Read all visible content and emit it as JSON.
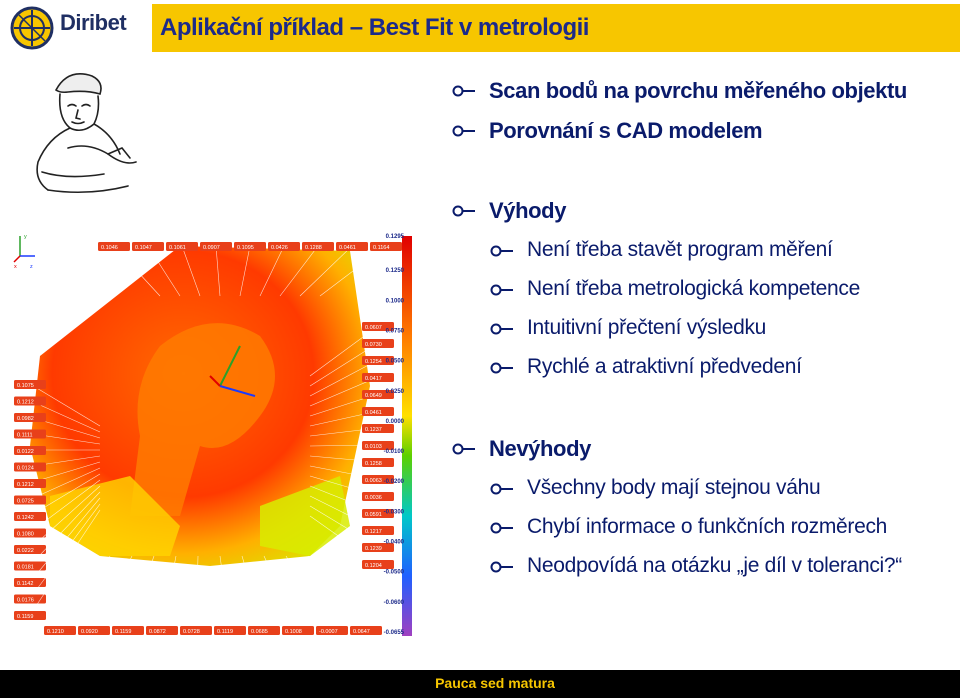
{
  "header": {
    "logo_text": "Diribet",
    "title": "Aplikační příklad – Best Fit v metrologii"
  },
  "bullets": {
    "scan": "Scan bodů na povrchu měřeného objektu",
    "compare": "Porovnání s CAD modelem",
    "advantages": "Výhody",
    "adv_items": [
      "Není třeba stavět program měření",
      "Není třeba metrologická kompetence",
      "Intuitivní přečtení výsledku",
      "Rychlé a atraktivní předvedení"
    ],
    "disadvantages": "Nevýhody",
    "dis_items": [
      "Všechny body mají stejnou váhu",
      "Chybí informace o funkčních rozměrech",
      "Neodpovídá na otázku „je díl v toleranci?“"
    ]
  },
  "figure": {
    "top_labels": [
      "0.1046",
      "0.1047",
      "0.1061",
      "0.0907",
      "0.1095",
      "0.0426",
      "0.1288",
      "0.0461",
      "0.1164"
    ],
    "left_labels": [
      "0.1075",
      "0.1212",
      "0.0982",
      "0.1111",
      "0.0122",
      "0.0124",
      "0.1212",
      "0.0725",
      "0.1242",
      "0.1080",
      "0.0222",
      "0.0181",
      "0.1142",
      "0.0176",
      "0.1159"
    ],
    "bottom_labels": [
      "0.1210",
      "0.0920",
      "0.1159",
      "0.0872",
      "0.0728",
      "0.1119",
      "0.0685",
      "0.1008",
      "-0.0007",
      "0.0647"
    ],
    "right_labels": [
      "0.0607",
      "0.0730",
      "0.1254",
      "0.0417",
      "0.0649",
      "0.0461",
      "0.1237",
      "0.0103",
      "0.1258",
      "0.0063",
      "0.0036",
      "0.0591",
      "0.1217",
      "0.1239",
      "0.1204"
    ],
    "scale_values": [
      "0.1295",
      "0.1250",
      "0.1000",
      "0.0750",
      "0.0500",
      "0.0250",
      "0.0000",
      "-0.0100",
      "-0.0200",
      "-0.0300",
      "-0.0400",
      "-0.0500",
      "-0.0600",
      "-0.0655"
    ],
    "axis_labels": [
      "y",
      "x",
      "z"
    ]
  },
  "footer": {
    "text": "Pauca sed matura"
  },
  "colors": {
    "accent": "#f7c600",
    "text": "#0a1b6b",
    "title": "#1c2a8a"
  }
}
